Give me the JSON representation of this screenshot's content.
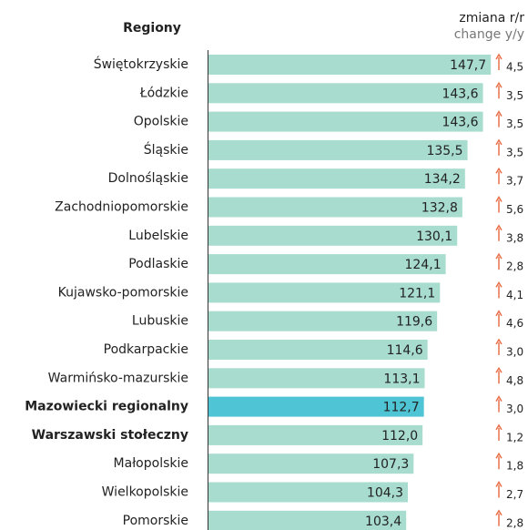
{
  "chart_data": {
    "type": "bar",
    "orientation": "horizontal",
    "category_header": "Regiony",
    "change_title": "zmiana r/r",
    "change_subtitle": "change y/y",
    "categories": [
      "Świętokrzyskie",
      "Łódzkie",
      "Opolskie",
      "Śląskie",
      "Dolnośląskie",
      "Zachodniopomorskie",
      "Lubelskie",
      "Podlaskie",
      "Kujawsko-pomorskie",
      "Lubuskie",
      "Podkarpackie",
      "Warmińsko-mazurskie",
      "Mazowiecki regionalny",
      "Warszawski stołeczny",
      "Małopolskie",
      "Wielkopolskie",
      "Pomorskie"
    ],
    "values": [
      147.7,
      143.6,
      143.6,
      135.5,
      134.2,
      132.8,
      130.1,
      124.1,
      121.1,
      119.6,
      114.6,
      113.1,
      112.7,
      112.0,
      107.3,
      104.3,
      103.4
    ],
    "value_labels": [
      "147,7",
      "143,6",
      "143,6",
      "135,5",
      "134,2",
      "132,8",
      "130,1",
      "124,1",
      "121,1",
      "119,6",
      "114,6",
      "113,1",
      "112,7",
      "112,0",
      "107,3",
      "104,3",
      "103,4"
    ],
    "colors": [
      "#a7dccf",
      "#a7dccf",
      "#a7dccf",
      "#a7dccf",
      "#a7dccf",
      "#a7dccf",
      "#a7dccf",
      "#a7dccf",
      "#a7dccf",
      "#a7dccf",
      "#a7dccf",
      "#a7dccf",
      "#4fc4d4",
      "#a7dccf",
      "#a7dccf",
      "#a7dccf",
      "#a7dccf"
    ],
    "bold_indices": [
      12,
      13
    ],
    "changes": [
      4.5,
      3.5,
      3.5,
      3.5,
      3.7,
      5.6,
      3.8,
      2.8,
      4.1,
      4.6,
      3.0,
      4.8,
      3.0,
      1.2,
      1.8,
      2.7,
      2.8
    ],
    "change_labels": [
      "4,5",
      "3,5",
      "3,5",
      "3,5",
      "3,7",
      "5,6",
      "3,8",
      "2,8",
      "4,1",
      "4,6",
      "3,0",
      "4,8",
      "3,0",
      "1,2",
      "1,8",
      "2,7",
      "2,8"
    ],
    "arrow_color": "#e8704a",
    "xlim": [
      0,
      150
    ]
  }
}
